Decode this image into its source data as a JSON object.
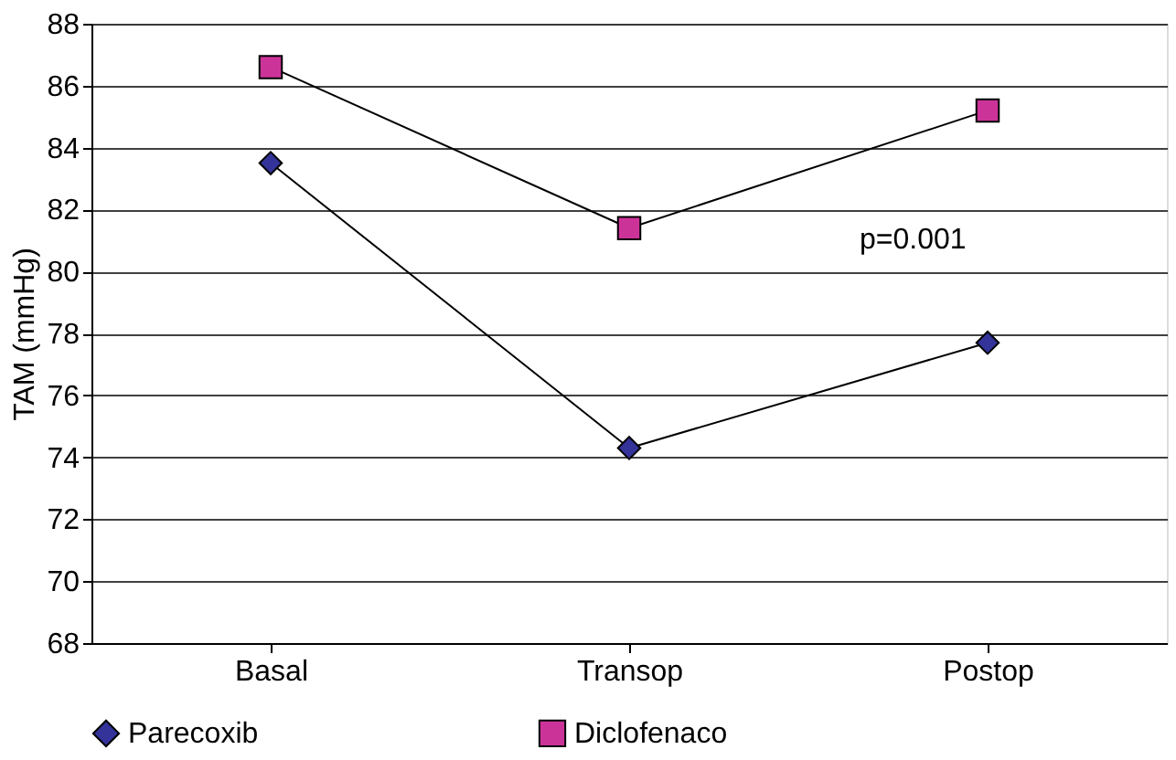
{
  "chart_data": {
    "type": "line",
    "ylabel": "TAM (mmHg)",
    "categories": [
      "Basal",
      "Transop",
      "Postop"
    ],
    "series": [
      {
        "name": "Parecoxib",
        "color": "#333399",
        "marker": "diamond",
        "values": [
          83.5,
          74.3,
          77.7
        ]
      },
      {
        "name": "Diclofenaco",
        "color": "#cc3399",
        "marker": "square",
        "values": [
          86.6,
          81.4,
          85.2
        ]
      }
    ],
    "ylim": [
      68,
      88
    ],
    "yticks": [
      68,
      70,
      72,
      74,
      76,
      78,
      80,
      82,
      84,
      86,
      88
    ],
    "grid": "y",
    "legend": "bottom",
    "annotations": [
      "p=0.001"
    ]
  }
}
